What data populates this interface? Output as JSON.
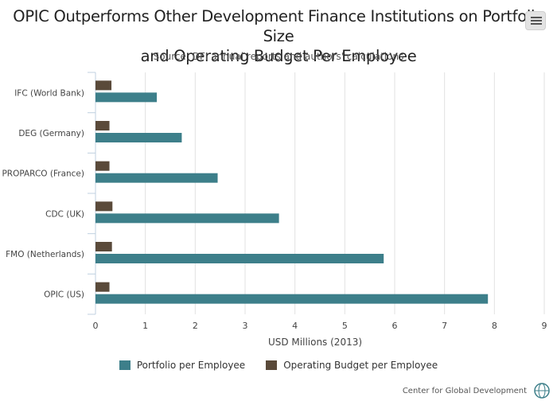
{
  "chart_data": {
    "type": "bar",
    "orientation": "horizontal",
    "title_lines": [
      "OPIC Outperforms Other Development Finance Institutions on Portfolio Size",
      "and Operating Budget Per Employee"
    ],
    "subtitle": "Source: DFI annual reports and authors' calculations",
    "xlabel": "USD Millions (2013)",
    "ylabel": "",
    "xlim": [
      0,
      9
    ],
    "x_ticks": [
      "0",
      "1",
      "2",
      "3",
      "4",
      "5",
      "6",
      "7",
      "8",
      "9"
    ],
    "categories": [
      "IFC (World Bank)",
      "DEG (Germany)",
      "PROPARCO (France)",
      "CDC (UK)",
      "FMO (Netherlands)",
      "OPIC (US)"
    ],
    "series": [
      {
        "name": "Operating Budget per Employee",
        "color": "#5a4a3a",
        "values": [
          0.32,
          0.28,
          0.28,
          0.34,
          0.33,
          0.28
        ]
      },
      {
        "name": "Portfolio per Employee",
        "color": "#3d7f8a",
        "values": [
          1.23,
          1.73,
          2.45,
          3.68,
          5.78,
          7.87
        ]
      }
    ],
    "legend_order": [
      "Portfolio per Employee",
      "Operating Budget per Employee"
    ],
    "legend_position": "bottom",
    "grid": true
  },
  "credit": "Center for Global Development",
  "icons": {
    "menu": "hamburger-menu-icon",
    "logo": "cgd-globe-logo-icon"
  }
}
